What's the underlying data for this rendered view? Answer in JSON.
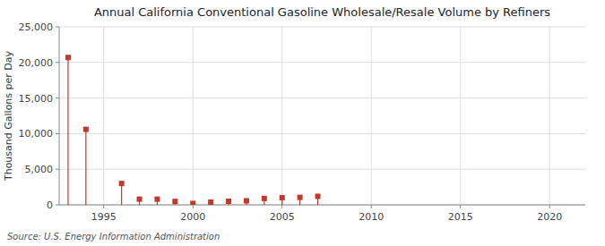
{
  "chart_data": {
    "type": "stem",
    "title": "Annual California Conventional Gasoline Wholesale/Resale Volume by Refiners",
    "y_label": "Thousand Gallons per Day",
    "source": "Source: U.S. Energy Information Administration",
    "x": [
      1993,
      1994,
      1996,
      1997,
      1998,
      1999,
      2000,
      2001,
      2002,
      2003,
      2004,
      2005,
      2006,
      2007
    ],
    "values": [
      20700,
      10600,
      3000,
      800,
      800,
      480,
      200,
      380,
      500,
      570,
      900,
      1000,
      1050,
      1200
    ],
    "color": "#c0392b",
    "marker": "square",
    "xlim": [
      1992.5,
      2022
    ],
    "ylim": [
      0,
      25000
    ],
    "xticks": [
      1995,
      2000,
      2005,
      2010,
      2015,
      2020
    ],
    "yticks": [
      0,
      {
        "value": 5000,
        "label": "5,000"
      },
      {
        "value": 10000,
        "label": "10,000"
      },
      {
        "value": 15000,
        "label": "15,000"
      },
      {
        "value": 20000,
        "label": "20,000"
      },
      {
        "value": 25000,
        "label": "25,000"
      }
    ],
    "grid": true
  }
}
